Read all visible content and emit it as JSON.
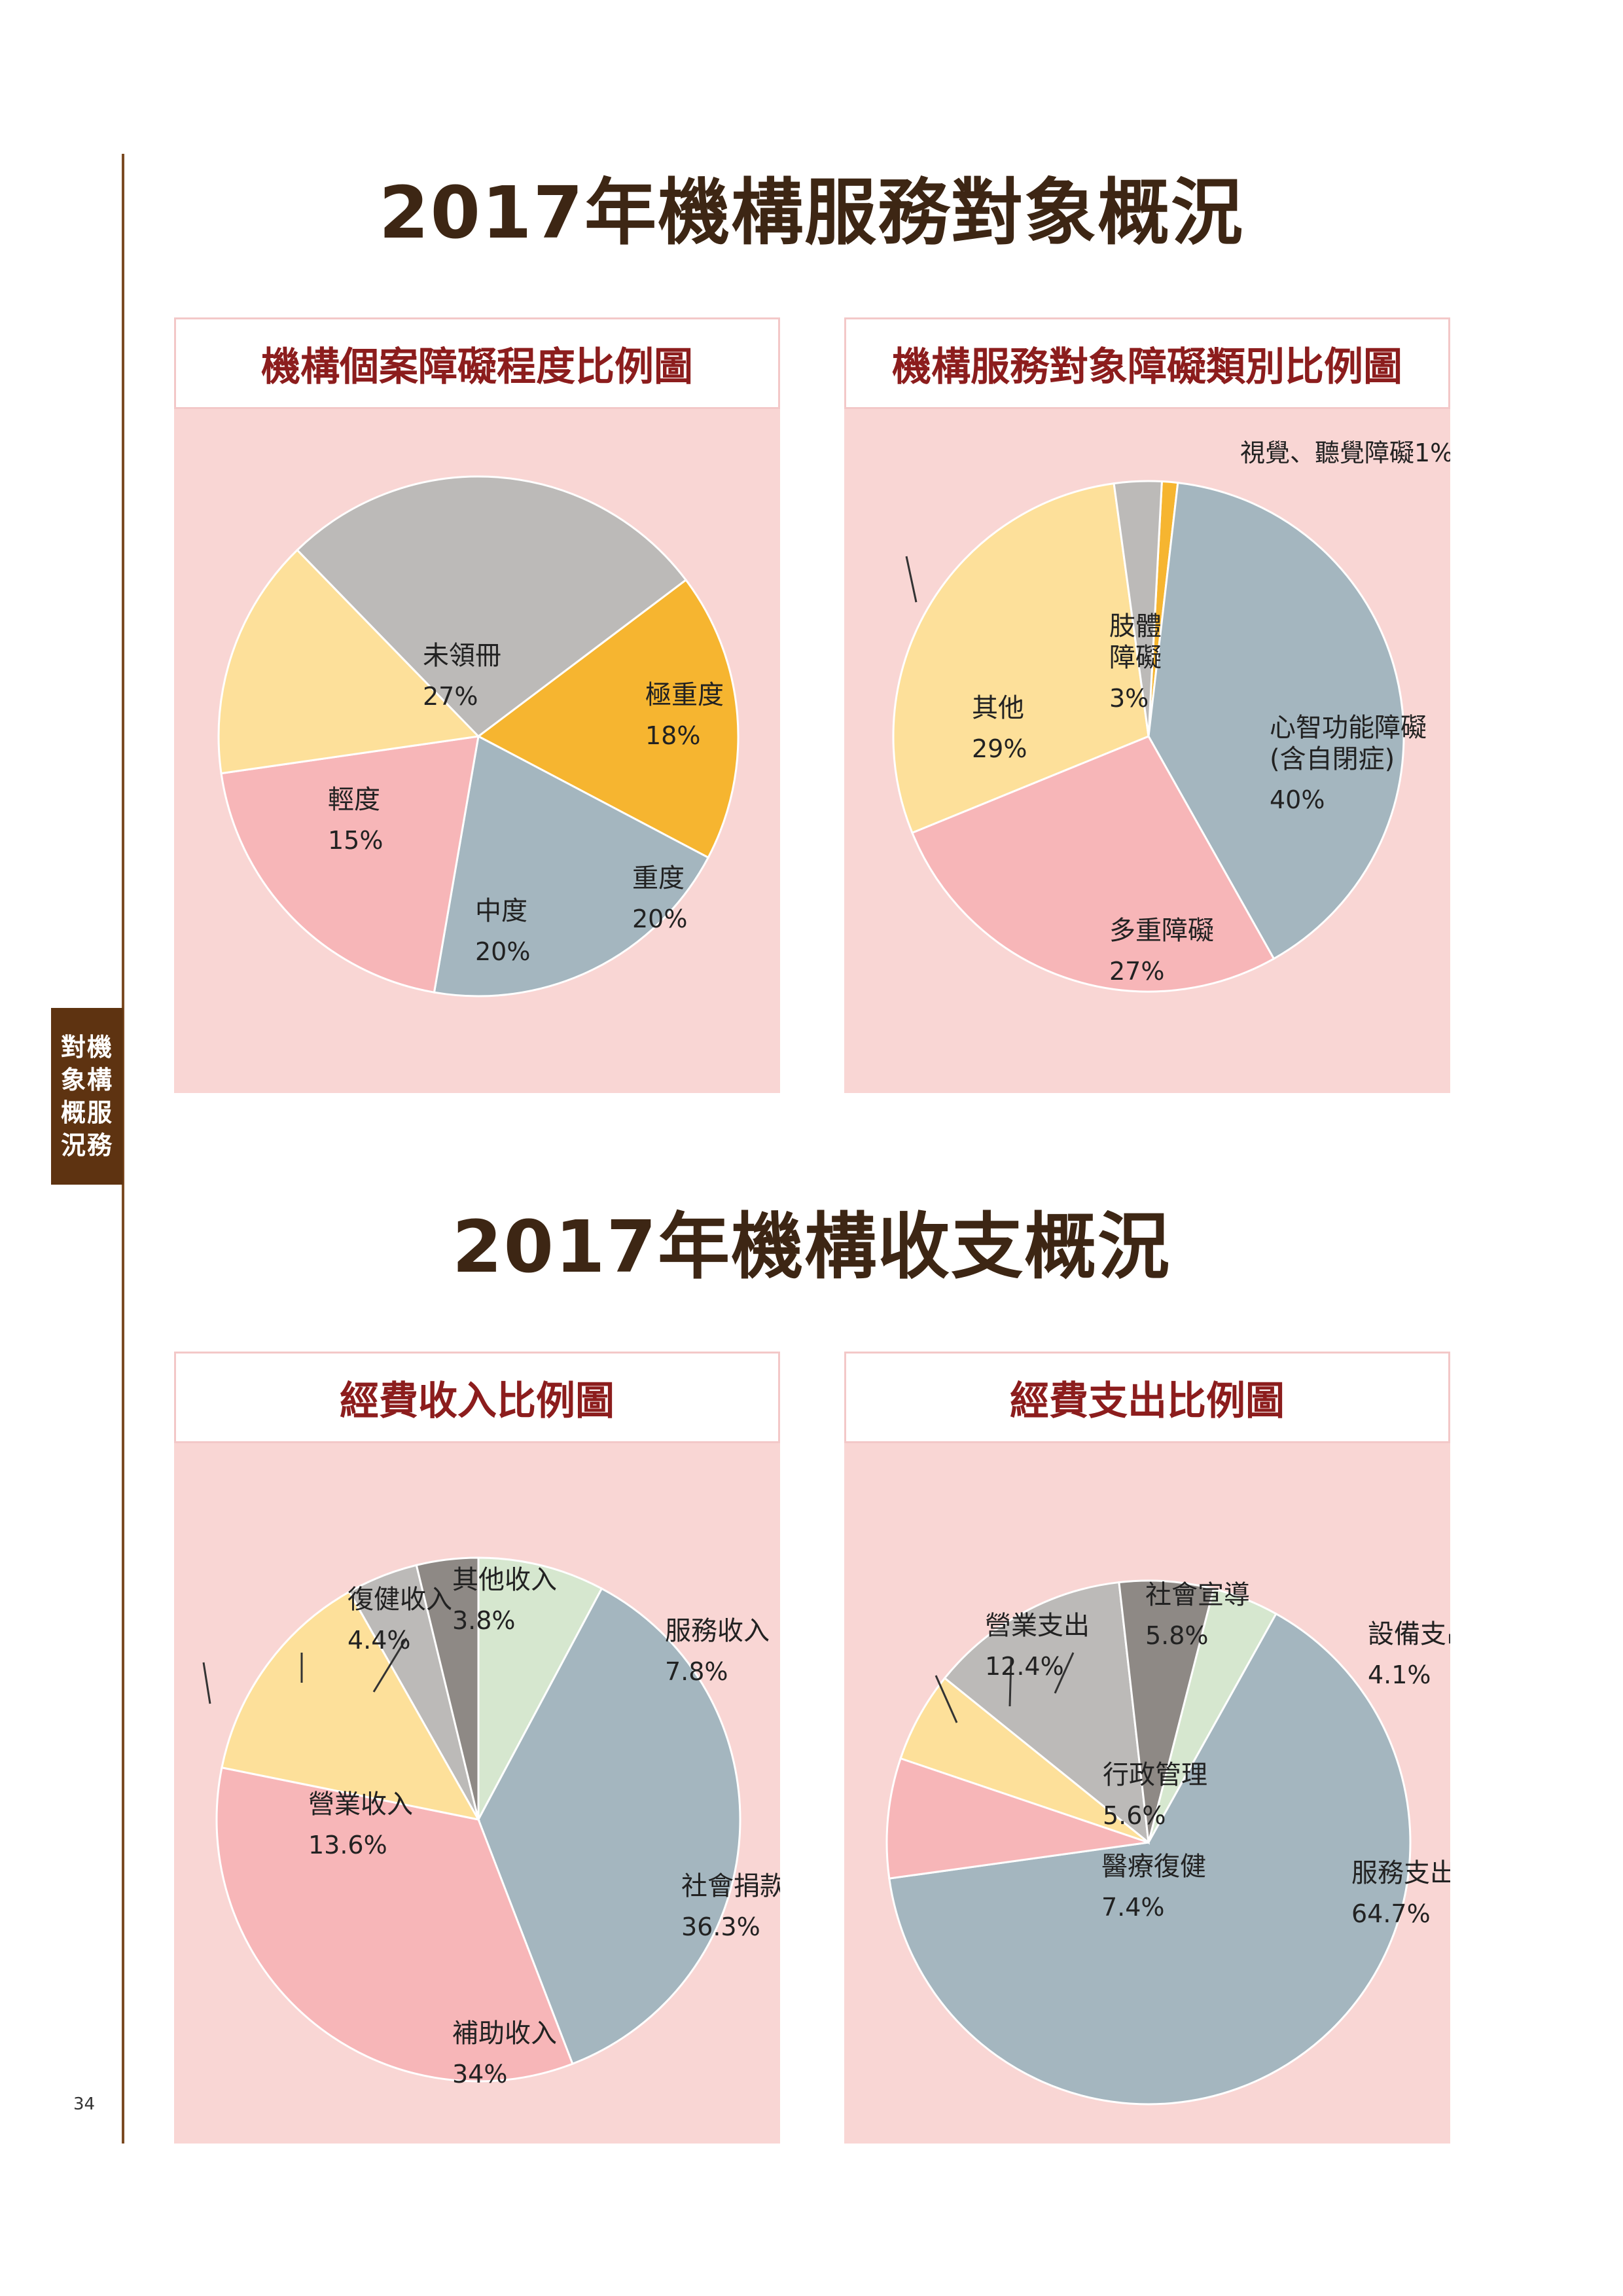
{
  "sidebar": {
    "tab_lines": [
      "對機",
      "象構",
      "概服",
      "況務"
    ],
    "page_number": "34"
  },
  "sections": {
    "service_title": "2017年機構服務對象概況",
    "finance_title": "2017年機構收支概況"
  },
  "chart_data": [
    {
      "type": "pie",
      "title": "機構個案障礙程度比例圖",
      "slices": [
        {
          "label": "極重度",
          "value_label": "18%",
          "value": 18,
          "color": "#f6b530"
        },
        {
          "label": "重度",
          "value_label": "20%",
          "value": 20,
          "color": "#a4b6bf"
        },
        {
          "label": "中度",
          "value_label": "20%",
          "value": 20,
          "color": "#f7b6b8"
        },
        {
          "label": "輕度",
          "value_label": "15%",
          "value": 15,
          "color": "#fde09a"
        },
        {
          "label": "未領冊",
          "value_label": "27%",
          "value": 27,
          "color": "#bcbab8"
        }
      ]
    },
    {
      "type": "pie",
      "title": "機構服務對象障礙類別比例圖",
      "slices": [
        {
          "label": "視覺、聽覺障礙",
          "value_label": "1%",
          "value": 1,
          "color": "#f6b530"
        },
        {
          "label": "心智功能障礙\n(含自閉症)",
          "value_label": "40%",
          "value": 40,
          "color": "#a4b6bf"
        },
        {
          "label": "多重障礙",
          "value_label": "27%",
          "value": 27,
          "color": "#f7b6b8"
        },
        {
          "label": "其他",
          "value_label": "29%",
          "value": 29,
          "color": "#fde09a"
        },
        {
          "label": "肢體\n障礙",
          "value_label": "3%",
          "value": 3,
          "color": "#bcbab8"
        }
      ]
    },
    {
      "type": "pie",
      "title": "經費收入比例圖",
      "slices": [
        {
          "label": "服務收入",
          "value_label": "7.8%",
          "value": 7.8,
          "color": "#d6e7cf"
        },
        {
          "label": "社會捐款",
          "value_label": "36.3%",
          "value": 36.3,
          "color": "#a4b6bf"
        },
        {
          "label": "補助收入",
          "value_label": "34%",
          "value": 34,
          "color": "#f7b6b8"
        },
        {
          "label": "營業收入",
          "value_label": "13.6%",
          "value": 13.6,
          "color": "#fde09a"
        },
        {
          "label": "復健收入",
          "value_label": "4.4%",
          "value": 4.4,
          "color": "#bcbab8"
        },
        {
          "label": "其他收入",
          "value_label": "3.8%",
          "value": 3.8,
          "color": "#8e8985"
        }
      ]
    },
    {
      "type": "pie",
      "title": "經費支出比例圖",
      "slices": [
        {
          "label": "設備支出",
          "value_label": "4.1%",
          "value": 4.1,
          "color": "#d6e7cf"
        },
        {
          "label": "服務支出",
          "value_label": "64.7%",
          "value": 64.7,
          "color": "#a4b6bf"
        },
        {
          "label": "醫療復健",
          "value_label": "7.4%",
          "value": 7.4,
          "color": "#f7b6b8"
        },
        {
          "label": "行政管理",
          "value_label": "5.6%",
          "value": 5.6,
          "color": "#fde09a"
        },
        {
          "label": "營業支出",
          "value_label": "12.4%",
          "value": 12.4,
          "color": "#bcbab8"
        },
        {
          "label": "社會宣導",
          "value_label": "5.8%",
          "value": 5.8,
          "color": "#8e8985"
        }
      ]
    }
  ]
}
